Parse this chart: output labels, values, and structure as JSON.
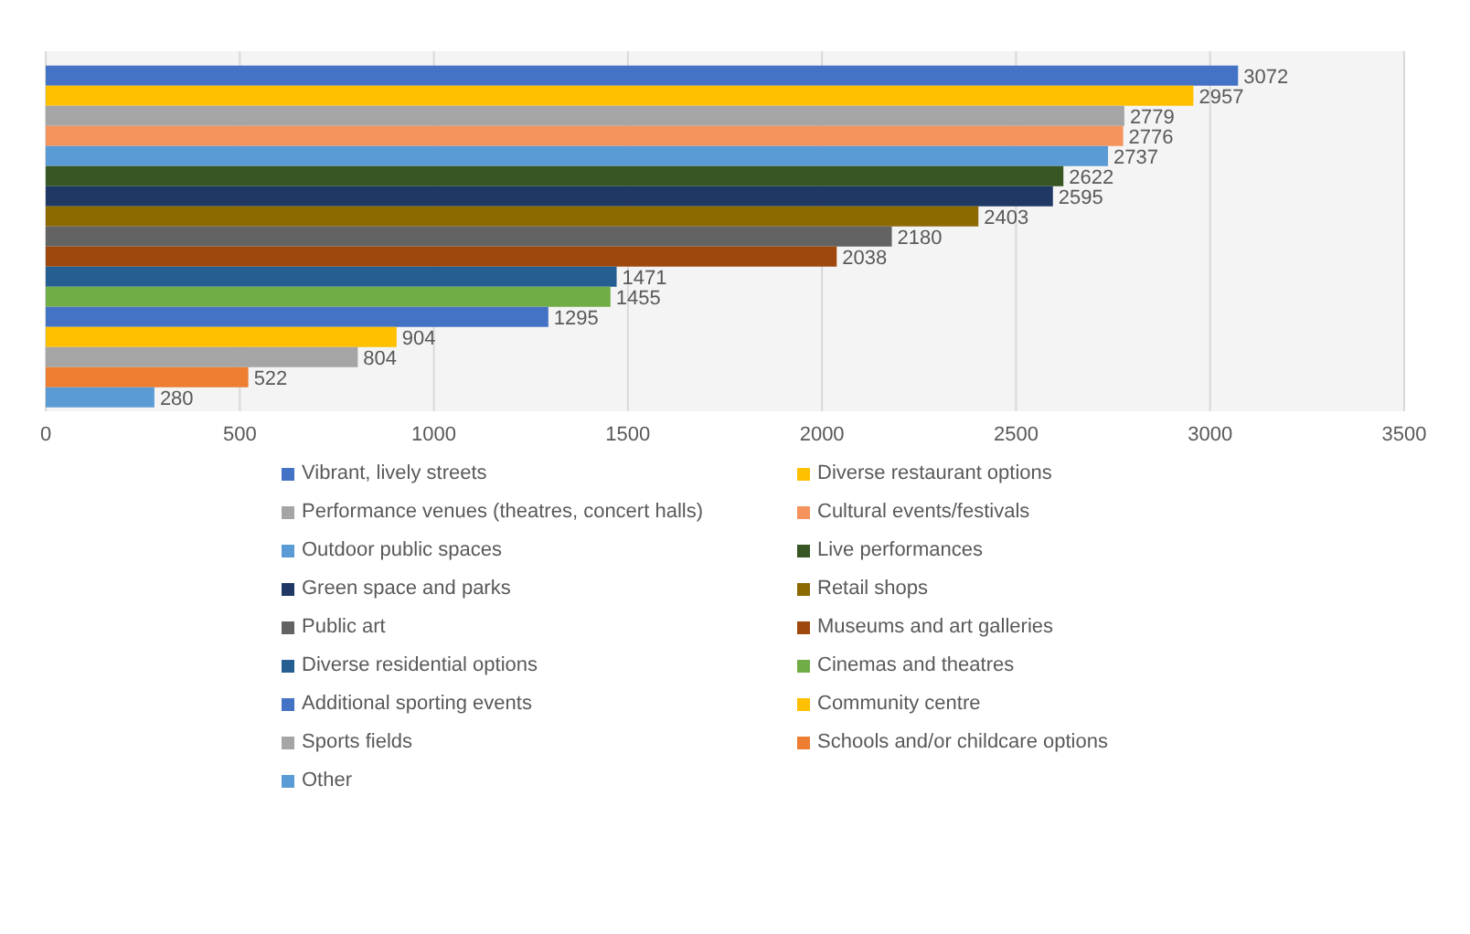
{
  "chart_data": {
    "type": "bar",
    "orientation": "horizontal",
    "categories": [
      null
    ],
    "xlim": [
      0,
      3500
    ],
    "xticks": [
      0,
      500,
      1000,
      1500,
      2000,
      2500,
      3000,
      3500
    ],
    "grid": "x",
    "legend": "bottom",
    "data_labels": true,
    "series": [
      {
        "name": "Vibrant, lively streets",
        "color": "#4472c4",
        "values": [
          3072
        ]
      },
      {
        "name": "Diverse restaurant options",
        "color": "#ffc000",
        "values": [
          2957
        ]
      },
      {
        "name": "Performance venues (theatres, concert halls)",
        "color": "#a5a5a5",
        "values": [
          2779
        ]
      },
      {
        "name": "Cultural events/festivals",
        "color": "#f4945c",
        "values": [
          2776
        ]
      },
      {
        "name": "Outdoor public spaces",
        "color": "#5b9bd5",
        "values": [
          2737
        ]
      },
      {
        "name": "Live performances",
        "color": "#375623",
        "values": [
          2622
        ]
      },
      {
        "name": "Green space and parks",
        "color": "#1f3864",
        "values": [
          2595
        ]
      },
      {
        "name": "Retail shops",
        "color": "#8c6a00",
        "values": [
          2403
        ]
      },
      {
        "name": "Public art",
        "color": "#636363",
        "values": [
          2180
        ]
      },
      {
        "name": "Museums and art galleries",
        "color": "#9e480e",
        "values": [
          2038
        ]
      },
      {
        "name": "Diverse residential options",
        "color": "#255e91",
        "values": [
          1471
        ]
      },
      {
        "name": "Cinemas and theatres",
        "color": "#70ad47",
        "values": [
          1455
        ]
      },
      {
        "name": "Additional sporting events",
        "color": "#4472c4",
        "values": [
          1295
        ]
      },
      {
        "name": "Community centre",
        "color": "#ffc000",
        "values": [
          904
        ]
      },
      {
        "name": "Sports fields",
        "color": "#a5a5a5",
        "values": [
          804
        ]
      },
      {
        "name": "Schools and/or childcare options",
        "color": "#ed7d31",
        "values": [
          522
        ]
      },
      {
        "name": "Other",
        "color": "#5b9bd5",
        "values": [
          280
        ]
      }
    ]
  }
}
